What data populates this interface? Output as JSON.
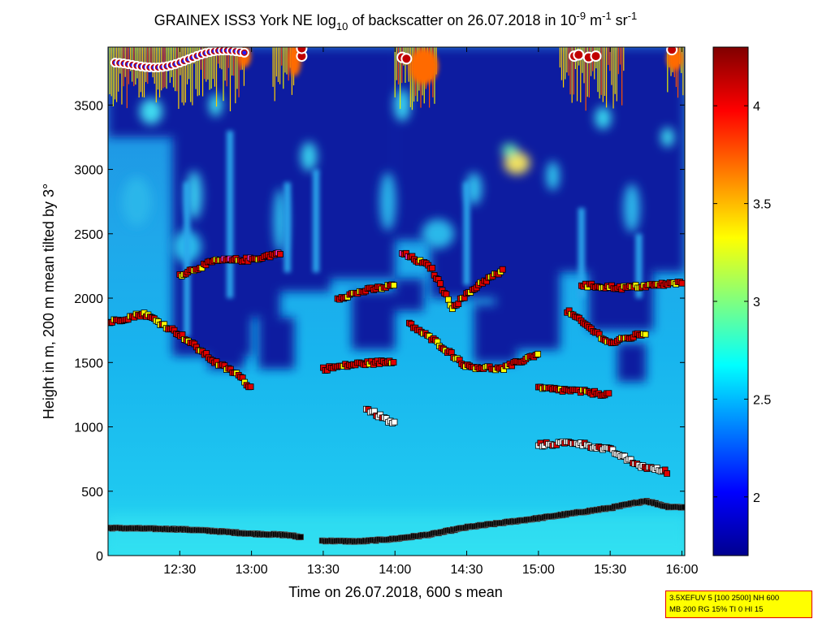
{
  "chart_data": {
    "type": "heatmap",
    "title": {
      "prefix": "GRAINEX ISS3 York NE log",
      "log_base": "10",
      "middle": " of backscatter on 26.07.2018 in 10",
      "exp1": "-9",
      "unit1": " m",
      "exp2": "-1",
      "unit2": " sr",
      "exp3": "-1"
    },
    "xlabel": "Time on 26.07.2018, 600 s mean",
    "ylabel": "Height in m, 200 m mean tilted by 3°",
    "x_tick_labels": [
      "12:30",
      "13:00",
      "13:30",
      "14:00",
      "14:30",
      "15:00",
      "15:30",
      "16:00"
    ],
    "x_ticks_hours": [
      12.5,
      13.0,
      13.5,
      14.0,
      14.5,
      15.0,
      15.5,
      16.0
    ],
    "xlim_hours": [
      12.0,
      16.02
    ],
    "y_tick_labels": [
      "0",
      "500",
      "1000",
      "1500",
      "2000",
      "2500",
      "3000",
      "3500"
    ],
    "y_ticks": [
      0,
      500,
      1000,
      1500,
      2000,
      2500,
      3000,
      3500
    ],
    "ylim": [
      0,
      3950
    ],
    "colorbar": {
      "range": [
        1.7,
        4.3
      ],
      "tick_labels": [
        "2",
        "2.5",
        "3",
        "3.5",
        "4"
      ],
      "ticks": [
        2.0,
        2.5,
        3.0,
        3.5,
        4.0
      ],
      "colormap": "jet"
    },
    "mixing_layer_height_m": [
      [
        12.0,
        215
      ],
      [
        12.5,
        205
      ],
      [
        12.75,
        190
      ],
      [
        13.0,
        170
      ],
      [
        13.25,
        160
      ],
      [
        13.5,
        115
      ],
      [
        13.75,
        110
      ],
      [
        14.0,
        130
      ],
      [
        14.25,
        165
      ],
      [
        14.5,
        220
      ],
      [
        14.75,
        255
      ],
      [
        15.0,
        290
      ],
      [
        15.25,
        330
      ],
      [
        15.5,
        370
      ],
      [
        15.75,
        425
      ],
      [
        15.9,
        380
      ],
      [
        16.02,
        375
      ]
    ],
    "cloud_base_layers_m": [
      [
        [
          12.0,
          1810
        ],
        [
          12.25,
          1880
        ],
        [
          12.5,
          1720
        ],
        [
          12.75,
          1500
        ],
        [
          12.9,
          1410
        ],
        [
          13.0,
          1300
        ]
      ],
      [
        [
          12.5,
          2180
        ],
        [
          12.75,
          2290
        ],
        [
          13.0,
          2300
        ],
        [
          13.2,
          2350
        ]
      ],
      [
        [
          13.5,
          1450
        ],
        [
          13.75,
          1490
        ],
        [
          14.0,
          1510
        ]
      ],
      [
        [
          13.6,
          2000
        ],
        [
          13.8,
          2060
        ],
        [
          14.0,
          2100
        ]
      ],
      [
        [
          14.05,
          2350
        ],
        [
          14.25,
          2240
        ],
        [
          14.4,
          1930
        ],
        [
          14.6,
          2120
        ],
        [
          14.75,
          2210
        ]
      ],
      [
        [
          14.1,
          1800
        ],
        [
          14.3,
          1650
        ],
        [
          14.5,
          1470
        ],
        [
          14.75,
          1450
        ],
        [
          15.0,
          1570
        ]
      ],
      [
        [
          13.8,
          1140
        ],
        [
          14.0,
          1020
        ]
      ],
      [
        [
          15.0,
          1300
        ],
        [
          15.25,
          1280
        ],
        [
          15.5,
          1250
        ]
      ],
      [
        [
          15.2,
          1900
        ],
        [
          15.5,
          1650
        ],
        [
          15.75,
          1730
        ]
      ],
      [
        [
          15.3,
          2100
        ],
        [
          15.6,
          2080
        ],
        [
          16.0,
          2120
        ]
      ],
      [
        [
          15.0,
          860
        ],
        [
          15.25,
          880
        ],
        [
          15.5,
          820
        ],
        [
          15.7,
          700
        ],
        [
          15.9,
          650
        ]
      ]
    ],
    "colors": {
      "marker_low": "#ffffff",
      "marker_mid": "#e00000",
      "marker_high": "#ffff00",
      "marker_top": "#ff33cc",
      "mixing_layer": "#000000"
    }
  },
  "info_box": {
    "line1": "3.5XEFUV 5 [100 2500] NH 600",
    "line2": "MB 200 RG 15% TI 0 HI 15"
  }
}
